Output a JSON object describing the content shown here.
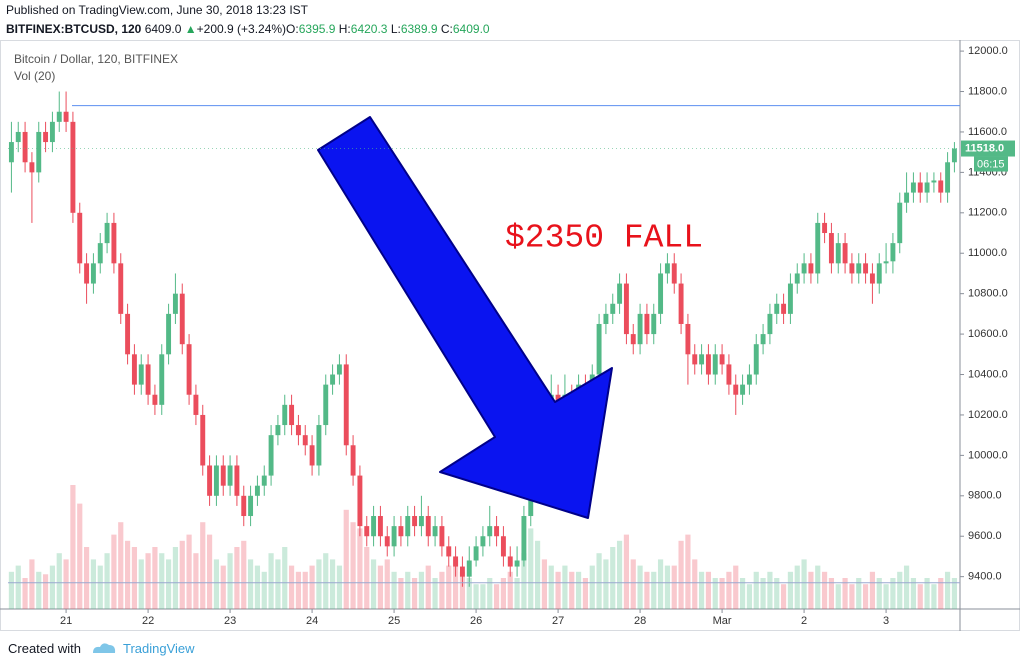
{
  "header": {
    "published": "Published on TradingView.com, June 30, 2018 13:23 IST",
    "symbol": "BITFINEX:BTCUSD, 120",
    "last": "6409.0",
    "arrow": "▲",
    "change": "+200.9 (+3.24%)",
    "o_label": "O:",
    "o": "6395.9",
    "h_label": "H:",
    "h": "6420.3",
    "l_label": "L:",
    "l": "6389.9",
    "c_label": "C:",
    "c": "6409.0"
  },
  "footer": {
    "created": "Created with",
    "brand": "TradingView"
  },
  "chart_data": {
    "type": "candlestick",
    "title": "Bitcoin / Dollar, 120, BITFINEX",
    "volume_title": "Vol (20)",
    "annotation": "$2350 FALL",
    "last_price_label": "11518.0",
    "countdown": "06:15",
    "up_color": "#53b987",
    "down_color": "#eb4d5c",
    "hlines": [
      11730,
      9370
    ],
    "ylim": [
      9240,
      12045
    ],
    "yticks": [
      {
        "value": 9400,
        "label": "9400.0"
      },
      {
        "value": 9600,
        "label": "9600.0"
      },
      {
        "value": 9800,
        "label": "9800.0"
      },
      {
        "value": 10000,
        "label": "10000.0"
      },
      {
        "value": 10200,
        "label": "10200.0"
      },
      {
        "value": 10400,
        "label": "10400.0"
      },
      {
        "value": 10600,
        "label": "10600.0"
      },
      {
        "value": 10800,
        "label": "10800.0"
      },
      {
        "value": 11000,
        "label": "11000.0"
      },
      {
        "value": 11200,
        "label": "11200.0"
      },
      {
        "value": 11400,
        "label": "11400.0"
      },
      {
        "value": 11600,
        "label": "11600.0"
      },
      {
        "value": 11800,
        "label": "11800.0"
      },
      {
        "value": 12000,
        "label": "12000.0"
      }
    ],
    "xticks": [
      {
        "value": 8,
        "label": "21"
      },
      {
        "value": 20,
        "label": "22"
      },
      {
        "value": 32,
        "label": "23"
      },
      {
        "value": 44,
        "label": "24"
      },
      {
        "value": 56,
        "label": "25"
      },
      {
        "value": 68,
        "label": "26"
      },
      {
        "value": 80,
        "label": "27"
      },
      {
        "value": 92,
        "label": "28"
      },
      {
        "value": 104,
        "label": "Mar"
      },
      {
        "value": 116,
        "label": "2"
      },
      {
        "value": 128,
        "label": "3"
      }
    ],
    "ohlc": [
      [
        11450,
        11650,
        11300,
        11550
      ],
      [
        11550,
        11650,
        11500,
        11600
      ],
      [
        11600,
        11650,
        11400,
        11450
      ],
      [
        11450,
        11500,
        11150,
        11400
      ],
      [
        11400,
        11650,
        11350,
        11600
      ],
      [
        11600,
        11650,
        11500,
        11550
      ],
      [
        11550,
        11700,
        11500,
        11650
      ],
      [
        11650,
        11800,
        11600,
        11700
      ],
      [
        11700,
        11800,
        11600,
        11650
      ],
      [
        11650,
        11700,
        11150,
        11200
      ],
      [
        11200,
        11250,
        10900,
        10950
      ],
      [
        10950,
        11000,
        10750,
        10850
      ],
      [
        10850,
        11000,
        10800,
        10950
      ],
      [
        10950,
        11100,
        10900,
        11050
      ],
      [
        11050,
        11200,
        11000,
        11150
      ],
      [
        11150,
        11200,
        10900,
        10950
      ],
      [
        10950,
        11000,
        10650,
        10700
      ],
      [
        10700,
        10750,
        10450,
        10500
      ],
      [
        10500,
        10550,
        10300,
        10350
      ],
      [
        10350,
        10500,
        10300,
        10450
      ],
      [
        10450,
        10500,
        10250,
        10300
      ],
      [
        10300,
        10350,
        10200,
        10250
      ],
      [
        10250,
        10550,
        10200,
        10500
      ],
      [
        10500,
        10750,
        10450,
        10700
      ],
      [
        10700,
        10900,
        10650,
        10800
      ],
      [
        10800,
        10850,
        10500,
        10550
      ],
      [
        10550,
        10600,
        10250,
        10300
      ],
      [
        10300,
        10350,
        10150,
        10200
      ],
      [
        10200,
        10250,
        9900,
        9950
      ],
      [
        9950,
        10000,
        9750,
        9800
      ],
      [
        9800,
        10000,
        9750,
        9950
      ],
      [
        9950,
        10000,
        9800,
        9850
      ],
      [
        9850,
        10000,
        9800,
        9950
      ],
      [
        9950,
        10000,
        9750,
        9800
      ],
      [
        9800,
        9850,
        9650,
        9700
      ],
      [
        9700,
        9850,
        9650,
        9800
      ],
      [
        9800,
        9900,
        9750,
        9850
      ],
      [
        9850,
        9950,
        9800,
        9900
      ],
      [
        9900,
        10150,
        9850,
        10100
      ],
      [
        10100,
        10200,
        10050,
        10150
      ],
      [
        10150,
        10300,
        10100,
        10250
      ],
      [
        10250,
        10300,
        10100,
        10150
      ],
      [
        10150,
        10200,
        10050,
        10100
      ],
      [
        10100,
        10150,
        10000,
        10050
      ],
      [
        10050,
        10100,
        9900,
        9950
      ],
      [
        9950,
        10200,
        9900,
        10150
      ],
      [
        10150,
        10400,
        10100,
        10350
      ],
      [
        10350,
        10450,
        10300,
        10400
      ],
      [
        10400,
        10500,
        10350,
        10450
      ],
      [
        10450,
        10500,
        10000,
        10050
      ],
      [
        10050,
        10100,
        9850,
        9900
      ],
      [
        9900,
        9950,
        9600,
        9650
      ],
      [
        9650,
        9700,
        9550,
        9600
      ],
      [
        9600,
        9750,
        9550,
        9700
      ],
      [
        9700,
        9750,
        9550,
        9600
      ],
      [
        9600,
        9650,
        9500,
        9550
      ],
      [
        9550,
        9700,
        9500,
        9650
      ],
      [
        9650,
        9700,
        9550,
        9600
      ],
      [
        9600,
        9750,
        9550,
        9700
      ],
      [
        9700,
        9750,
        9600,
        9650
      ],
      [
        9650,
        9800,
        9600,
        9700
      ],
      [
        9700,
        9750,
        9550,
        9600
      ],
      [
        9600,
        9700,
        9550,
        9650
      ],
      [
        9650,
        9700,
        9500,
        9550
      ],
      [
        9550,
        9600,
        9450,
        9500
      ],
      [
        9500,
        9550,
        9400,
        9450
      ],
      [
        9450,
        9500,
        9350,
        9400
      ],
      [
        9400,
        9550,
        9350,
        9480
      ],
      [
        9480,
        9600,
        9450,
        9550
      ],
      [
        9550,
        9650,
        9500,
        9600
      ],
      [
        9600,
        9750,
        9550,
        9650
      ],
      [
        9650,
        9700,
        9550,
        9600
      ],
      [
        9600,
        9650,
        9450,
        9500
      ],
      [
        9500,
        9550,
        9400,
        9450
      ],
      [
        9450,
        9550,
        9400,
        9480
      ],
      [
        9480,
        9750,
        9450,
        9700
      ],
      [
        9700,
        10150,
        9650,
        10100
      ],
      [
        10100,
        10400,
        10050,
        10250
      ],
      [
        10250,
        10350,
        10150,
        10200
      ],
      [
        10200,
        10400,
        10150,
        10300
      ],
      [
        10300,
        10350,
        10150,
        10250
      ],
      [
        10250,
        10400,
        10200,
        10300
      ],
      [
        10300,
        10350,
        10150,
        10220
      ],
      [
        10220,
        10400,
        10150,
        10350
      ],
      [
        10350,
        10400,
        10250,
        10300
      ],
      [
        10300,
        10450,
        10250,
        10400
      ],
      [
        10400,
        10700,
        10350,
        10650
      ],
      [
        10650,
        10750,
        10600,
        10700
      ],
      [
        10700,
        10800,
        10650,
        10750
      ],
      [
        10750,
        10900,
        10700,
        10850
      ],
      [
        10850,
        10900,
        10550,
        10600
      ],
      [
        10600,
        10650,
        10500,
        10550
      ],
      [
        10550,
        10750,
        10500,
        10700
      ],
      [
        10700,
        10750,
        10550,
        10600
      ],
      [
        10600,
        10750,
        10550,
        10700
      ],
      [
        10700,
        10950,
        10650,
        10900
      ],
      [
        10900,
        11000,
        10850,
        10950
      ],
      [
        10950,
        11000,
        10800,
        10850
      ],
      [
        10850,
        10900,
        10600,
        10650
      ],
      [
        10650,
        10700,
        10350,
        10500
      ],
      [
        10500,
        10550,
        10400,
        10450
      ],
      [
        10450,
        10550,
        10400,
        10500
      ],
      [
        10500,
        10550,
        10350,
        10400
      ],
      [
        10400,
        10550,
        10350,
        10500
      ],
      [
        10500,
        10550,
        10400,
        10450
      ],
      [
        10450,
        10500,
        10300,
        10350
      ],
      [
        10350,
        10400,
        10200,
        10300
      ],
      [
        10300,
        10400,
        10250,
        10350
      ],
      [
        10350,
        10450,
        10300,
        10400
      ],
      [
        10400,
        10600,
        10350,
        10550
      ],
      [
        10550,
        10650,
        10500,
        10600
      ],
      [
        10600,
        10750,
        10550,
        10700
      ],
      [
        10700,
        10800,
        10650,
        10750
      ],
      [
        10750,
        10800,
        10650,
        10700
      ],
      [
        10700,
        10900,
        10650,
        10850
      ],
      [
        10850,
        10950,
        10800,
        10900
      ],
      [
        10900,
        11000,
        10850,
        10950
      ],
      [
        10950,
        11000,
        10850,
        10900
      ],
      [
        10900,
        11200,
        10850,
        11150
      ],
      [
        11150,
        11200,
        11050,
        11100
      ],
      [
        11100,
        11150,
        10900,
        10950
      ],
      [
        10950,
        11100,
        10900,
        11050
      ],
      [
        11050,
        11100,
        10900,
        10950
      ],
      [
        10950,
        11000,
        10850,
        10900
      ],
      [
        10900,
        11000,
        10850,
        10950
      ],
      [
        10950,
        11000,
        10850,
        10900
      ],
      [
        10900,
        10950,
        10750,
        10850
      ],
      [
        10850,
        11000,
        10800,
        10950
      ],
      [
        10950,
        11050,
        10900,
        10960
      ],
      [
        10960,
        11100,
        10900,
        11050
      ],
      [
        11050,
        11300,
        11000,
        11250
      ],
      [
        11250,
        11400,
        11200,
        11300
      ],
      [
        11300,
        11400,
        11250,
        11350
      ],
      [
        11350,
        11400,
        11250,
        11300
      ],
      [
        11300,
        11400,
        11250,
        11350
      ],
      [
        11350,
        11400,
        11300,
        11360
      ],
      [
        11360,
        11400,
        11250,
        11300
      ],
      [
        11300,
        11500,
        11250,
        11450
      ],
      [
        11450,
        11550,
        11400,
        11518
      ]
    ],
    "volume": [
      30,
      35,
      25,
      40,
      30,
      28,
      35,
      45,
      40,
      100,
      85,
      50,
      40,
      35,
      45,
      60,
      70,
      55,
      50,
      40,
      45,
      50,
      45,
      40,
      50,
      55,
      60,
      45,
      70,
      60,
      40,
      35,
      45,
      50,
      55,
      40,
      35,
      30,
      45,
      40,
      50,
      35,
      30,
      30,
      35,
      40,
      45,
      40,
      35,
      80,
      70,
      65,
      50,
      40,
      35,
      40,
      30,
      25,
      30,
      25,
      30,
      35,
      25,
      30,
      35,
      40,
      30,
      25,
      20,
      20,
      25,
      20,
      25,
      30,
      25,
      45,
      65,
      55,
      40,
      35,
      30,
      35,
      30,
      30,
      25,
      35,
      45,
      40,
      50,
      55,
      60,
      40,
      35,
      30,
      30,
      40,
      35,
      35,
      55,
      60,
      40,
      30,
      30,
      25,
      25,
      30,
      35,
      25,
      20,
      30,
      25,
      30,
      25,
      20,
      30,
      35,
      40,
      30,
      35,
      30,
      25,
      20,
      25,
      20,
      25,
      20,
      30,
      25,
      20,
      25,
      30,
      35,
      25,
      20,
      25,
      20,
      25,
      30,
      25
    ]
  }
}
